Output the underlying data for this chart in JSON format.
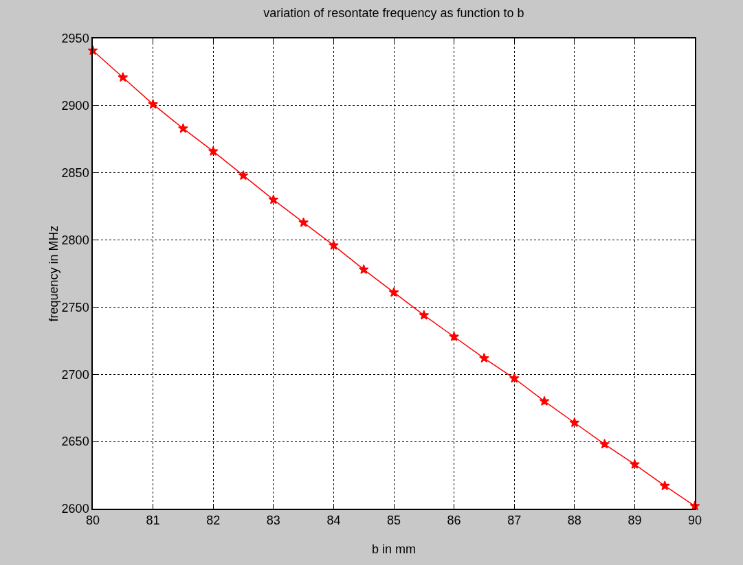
{
  "chart_data": {
    "type": "line",
    "title": "variation of resontate frequency as function to b",
    "xlabel": "b in mm",
    "ylabel": "frequency in MHz",
    "x": [
      80,
      80.5,
      81,
      81.5,
      82,
      82.5,
      83,
      83.5,
      84,
      84.5,
      85,
      85.5,
      86,
      86.5,
      87,
      87.5,
      88,
      88.5,
      89,
      89.5,
      90
    ],
    "series": [
      {
        "color": "#ff0000",
        "values": [
          2941,
          2921,
          2901,
          2883,
          2866,
          2848,
          2830,
          2813,
          2796,
          2778,
          2761,
          2744,
          2728,
          2712,
          2697,
          2680,
          2664,
          2648,
          2633,
          2617,
          2602
        ]
      }
    ],
    "xlim": [
      80,
      90
    ],
    "xticks": [
      80,
      81,
      82,
      83,
      84,
      85,
      86,
      87,
      88,
      89,
      90
    ],
    "ylim": [
      2600,
      2950
    ],
    "yticks": [
      2600,
      2650,
      2700,
      2750,
      2800,
      2850,
      2900,
      2950
    ],
    "grid": true,
    "marker": "star",
    "line_style": "solid"
  }
}
